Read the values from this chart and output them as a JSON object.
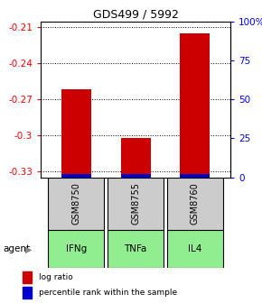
{
  "title": "GDS499 / 5992",
  "samples": [
    "GSM8750",
    "GSM8755",
    "GSM8760"
  ],
  "agents": [
    "IFNg",
    "TNFa",
    "IL4"
  ],
  "log_ratios": [
    -0.262,
    -0.302,
    -0.215
  ],
  "ylim_left": [
    -0.335,
    -0.205
  ],
  "yticks_left": [
    -0.33,
    -0.3,
    -0.27,
    -0.24,
    -0.21
  ],
  "yticks_right": [
    0,
    25,
    50,
    75,
    100
  ],
  "ylim_right": [
    0,
    100
  ],
  "bar_color": "#cc0000",
  "pct_color": "#0000cc",
  "sample_box_color": "#cccccc",
  "agent_green": "#90ee90",
  "bar_width": 0.5,
  "title_fontsize": 9,
  "tick_fontsize": 7.5,
  "legend_fontsize": 6.5
}
